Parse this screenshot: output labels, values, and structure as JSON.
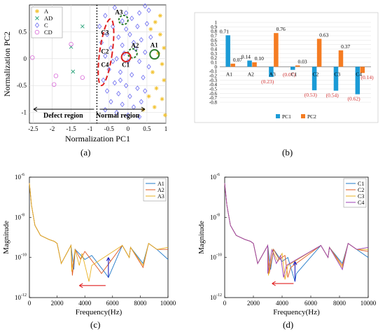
{
  "labels": {
    "a": "(a)",
    "b": "(b)",
    "c": "(c)",
    "d": "(d)"
  },
  "chart_data": [
    {
      "type": "scatter",
      "xlabel": "Normalization  PC1",
      "ylabel": "Normalization  PC2",
      "xlim": [
        -2.6,
        1.0
      ],
      "ylim": [
        -1.2,
        1.0
      ],
      "xticks": [
        -2.5,
        -2,
        -1.5,
        -1,
        -0.5,
        0,
        0.5,
        1
      ],
      "xtick_labels": [
        "-2.5",
        "-2",
        "-1.5",
        "-1",
        "-0.5",
        "0",
        "0.5",
        "1"
      ],
      "yticks": [
        -1,
        -0.5,
        0,
        0.5
      ],
      "ytick_labels": [
        "-1",
        "-0.5",
        "0",
        "0.5"
      ],
      "legend": {
        "placement": "top-left",
        "entries": [
          "A",
          "AD",
          "C",
          "CD"
        ]
      },
      "series_colors": {
        "A": "#f2c230",
        "AD": "#2aa37a",
        "C": "#6b6bf0",
        "CD": "#d96bd9"
      },
      "regions": {
        "defect": "Defect region",
        "normal": "Normal region",
        "boundary_x": -0.82
      },
      "series": [
        {
          "name": "A",
          "points": [
            [
              0.72,
              0.68
            ],
            [
              0.6,
              0.55
            ],
            [
              0.85,
              0.45
            ],
            [
              0.95,
              0.2
            ],
            [
              0.8,
              0.1
            ],
            [
              0.9,
              -0.1
            ],
            [
              0.65,
              -0.25
            ],
            [
              0.95,
              -0.4
            ],
            [
              0.75,
              -0.55
            ],
            [
              0.55,
              -0.7
            ],
            [
              0.9,
              -0.75
            ],
            [
              0.7,
              -0.9
            ],
            [
              0.98,
              -1.05
            ],
            [
              0.4,
              -0.95
            ],
            [
              0.85,
              0.8
            ]
          ]
        },
        {
          "name": "AD",
          "points": [
            [
              -1.2,
              0.6
            ],
            [
              -1.5,
              0.22
            ],
            [
              -1.45,
              -0.24
            ]
          ]
        },
        {
          "name": "C",
          "points": [
            [
              -0.35,
              0.95
            ],
            [
              0.45,
              0.98
            ],
            [
              0.55,
              0.9
            ],
            [
              -0.6,
              0.8
            ],
            [
              -0.15,
              0.7
            ],
            [
              0.1,
              0.75
            ],
            [
              0.3,
              0.85
            ],
            [
              -0.4,
              0.6
            ],
            [
              -0.05,
              0.55
            ],
            [
              0.25,
              0.6
            ],
            [
              0.5,
              0.65
            ],
            [
              -0.55,
              0.45
            ],
            [
              -0.25,
              0.4
            ],
            [
              0.05,
              0.45
            ],
            [
              0.35,
              0.35
            ],
            [
              -0.7,
              0.3
            ],
            [
              -0.45,
              0.2
            ],
            [
              -0.15,
              0.25
            ],
            [
              0.2,
              0.18
            ],
            [
              0.45,
              0.12
            ],
            [
              -0.6,
              0.05
            ],
            [
              -0.3,
              0.0
            ],
            [
              0.0,
              -0.05
            ],
            [
              0.3,
              -0.05
            ],
            [
              0.55,
              -0.15
            ],
            [
              -0.5,
              -0.2
            ],
            [
              -0.2,
              -0.25
            ],
            [
              0.1,
              -0.3
            ],
            [
              0.4,
              -0.35
            ],
            [
              -0.65,
              -0.4
            ],
            [
              -0.35,
              -0.45
            ],
            [
              -0.05,
              -0.5
            ],
            [
              0.25,
              -0.55
            ],
            [
              -0.55,
              -0.6
            ],
            [
              -0.25,
              -0.65
            ],
            [
              0.05,
              -0.7
            ],
            [
              0.35,
              -0.8
            ],
            [
              -0.45,
              -0.8
            ],
            [
              -0.15,
              -0.85
            ],
            [
              0.15,
              -0.9
            ],
            [
              -0.3,
              -1.0
            ],
            [
              0.0,
              -1.05
            ],
            [
              -0.6,
              -0.95
            ],
            [
              0.3,
              -1.08
            ],
            [
              -0.1,
              0.1
            ],
            [
              0.15,
              0.3
            ],
            [
              -0.4,
              -0.05
            ],
            [
              0.6,
              0.4
            ],
            [
              -0.2,
              -0.4
            ],
            [
              0.45,
              -0.6
            ],
            [
              -0.75,
              0.6
            ],
            [
              -0.05,
              0.85
            ]
          ]
        },
        {
          "name": "CD",
          "points": [
            [
              -2.52,
              0.02
            ],
            [
              -1.9,
              -0.32
            ],
            [
              -1.95,
              -0.48
            ],
            [
              -1.5,
              0.27
            ],
            [
              -1.2,
              -0.35
            ]
          ]
        }
      ],
      "annotations": [
        {
          "text": "A1",
          "x": 0.7,
          "y": 0.08,
          "ring": "#2d7d2d"
        },
        {
          "text": "A2",
          "x": 0.12,
          "y": 0.1,
          "ring": "#2d7d2d"
        },
        {
          "text": "A3",
          "x": -0.12,
          "y": 0.72,
          "ring": "#2d7d2d"
        },
        {
          "text": "C1",
          "x": -0.05,
          "y": 0.03,
          "ring": "#d42020"
        },
        {
          "text": "C2",
          "x": -0.6,
          "y": 0.15,
          "ring": null
        },
        {
          "text": "C3",
          "x": -0.6,
          "y": 0.5,
          "ring": null
        },
        {
          "text": "C4",
          "x": -0.6,
          "y": -0.1,
          "ring": null
        }
      ]
    },
    {
      "type": "bar",
      "categories": [
        "A1",
        "A2",
        "A3",
        "C1",
        "C2",
        "C3",
        "C4"
      ],
      "series": [
        {
          "name": "PC1",
          "values": [
            0.71,
            0.14,
            -0.23,
            -0.07,
            -0.53,
            -0.54,
            -0.62
          ],
          "color": "#1b9bd6"
        },
        {
          "name": "PC2",
          "values": [
            0.07,
            0.1,
            0.76,
            0.03,
            0.63,
            0.37,
            -0.14
          ],
          "color": "#f57c22"
        }
      ],
      "value_labels": [
        [
          "0.71",
          "0.07"
        ],
        [
          "0.14",
          "0.10"
        ],
        [
          "(0.23)",
          "0.76"
        ],
        [
          "(0.07)",
          "0.03"
        ],
        [
          "(0.53)",
          "0.63"
        ],
        [
          "(0.54)",
          "0.37"
        ],
        [
          "(0.62)",
          "(0.14)"
        ]
      ],
      "ylim": [
        -0.8,
        1.0
      ],
      "yticks": [
        1,
        0.9,
        0.8,
        0.7,
        0.6,
        0.5,
        0.4,
        0.3,
        0.2,
        0.1,
        0,
        -0.1,
        -0.2,
        -0.3,
        -0.4,
        -0.5,
        -0.6,
        -0.7,
        -0.8
      ],
      "ytick_labels": [
        "1",
        "0.9",
        "0.8",
        "0.7",
        "0.6",
        "0.5",
        "0.4",
        "0.3",
        "0.2",
        "0.1",
        "0",
        "-0.1",
        "-0.2",
        "-0.3",
        "-0.4",
        "-0.5",
        "-0.6",
        "-0.7",
        "-0.8"
      ],
      "legend": {
        "placement": "bottom",
        "entries": [
          "PC1",
          "PC2"
        ]
      }
    },
    {
      "type": "line",
      "xlabel": "Frequency(Hz)",
      "ylabel": "Magnitude",
      "xlim": [
        0,
        10000
      ],
      "ylim_log10": [
        -12,
        -6
      ],
      "xticks": [
        0,
        2000,
        4000,
        6000,
        8000,
        10000
      ],
      "xtick_labels": [
        "0",
        "2000",
        "4000",
        "6000",
        "8000",
        "10000"
      ],
      "ytick_labels": [
        "10",
        "10",
        "10",
        "10"
      ],
      "ytick_exponents": [
        "-6",
        "-8",
        "-10",
        "-12"
      ],
      "legend": {
        "placement": "top-right",
        "entries": [
          "A1",
          "A2",
          "A3"
        ]
      },
      "series": [
        {
          "name": "A1",
          "color": "#1f78c8",
          "peaks": [
            [
              2000,
              -9.3
            ],
            [
              3000,
              -9.4
            ],
            [
              3300,
              -9.6
            ],
            [
              4500,
              -9.9
            ],
            [
              5500,
              -10.8
            ],
            [
              6700,
              -9.4
            ],
            [
              7300,
              -9.5
            ],
            [
              8600,
              -9.3
            ]
          ],
          "dips": [
            [
              2300,
              -10.3
            ],
            [
              3200,
              -10.6
            ],
            [
              4000,
              -10.1
            ],
            [
              5700,
              -11.0
            ],
            [
              7200,
              -10.0
            ],
            [
              8200,
              -10.3
            ]
          ],
          "end": -10.1
        },
        {
          "name": "A2",
          "color": "#e05a20",
          "peaks": [
            [
              2000,
              -9.3
            ],
            [
              3000,
              -9.4
            ],
            [
              3300,
              -9.6
            ],
            [
              4000,
              -9.7
            ],
            [
              5000,
              -10.6
            ],
            [
              6700,
              -9.4
            ],
            [
              7300,
              -9.5
            ],
            [
              8600,
              -9.3
            ]
          ],
          "dips": [
            [
              2300,
              -10.3
            ],
            [
              3100,
              -10.9
            ],
            [
              3700,
              -10.1
            ],
            [
              5200,
              -10.8
            ],
            [
              7200,
              -10.0
            ],
            [
              8200,
              -10.5
            ]
          ],
          "end": -9.6
        },
        {
          "name": "A3",
          "color": "#e8b020",
          "peaks": [
            [
              2000,
              -9.3
            ],
            [
              3000,
              -9.4
            ],
            [
              3300,
              -9.6
            ],
            [
              3800,
              -9.8
            ],
            [
              4500,
              -10.4
            ],
            [
              6700,
              -9.4
            ],
            [
              7300,
              -9.5
            ],
            [
              8600,
              -9.3
            ]
          ],
          "dips": [
            [
              2300,
              -10.3
            ],
            [
              3050,
              -10.7
            ],
            [
              3600,
              -10.4
            ],
            [
              4300,
              -11.2
            ],
            [
              7200,
              -10.0
            ],
            [
              8200,
              -10.4
            ]
          ],
          "end": -9.5
        }
      ],
      "arrow_left": {
        "from": 5500,
        "to": 3600,
        "level": -11.4
      },
      "arrow_up": {
        "x": 5700,
        "from": -11.0,
        "to": -10.0
      }
    },
    {
      "type": "line",
      "xlabel": "Frequency(Hz)",
      "ylabel": "Magnitude",
      "xlim": [
        0,
        10000
      ],
      "ylim_log10": [
        -12,
        -6
      ],
      "xticks": [
        0,
        2000,
        4000,
        6000,
        8000,
        10000
      ],
      "xtick_labels": [
        "0",
        "2000",
        "4000",
        "6000",
        "8000",
        "10000"
      ],
      "ytick_labels": [
        "10",
        "10",
        "10",
        "10"
      ],
      "ytick_exponents": [
        "-6",
        "-8",
        "-10",
        "-12"
      ],
      "legend": {
        "placement": "top-right",
        "entries": [
          "C1",
          "C2",
          "C3",
          "C4"
        ]
      },
      "series": [
        {
          "name": "C1",
          "color": "#1f78c8",
          "peaks": [
            [
              2000,
              -9.3
            ],
            [
              3000,
              -9.4
            ],
            [
              3400,
              -9.6
            ],
            [
              4400,
              -10.0
            ],
            [
              5000,
              -10.8
            ],
            [
              6700,
              -9.4
            ],
            [
              7300,
              -9.5
            ],
            [
              8600,
              -9.3
            ]
          ],
          "dips": [
            [
              2300,
              -10.3
            ],
            [
              3200,
              -10.6
            ],
            [
              4000,
              -10.2
            ],
            [
              4900,
              -11.2
            ],
            [
              7200,
              -10.0
            ],
            [
              8200,
              -10.3
            ]
          ],
          "end": -10.0
        },
        {
          "name": "C2",
          "color": "#e05a20",
          "peaks": [
            [
              2000,
              -9.3
            ],
            [
              3000,
              -9.4
            ],
            [
              3400,
              -9.6
            ],
            [
              4200,
              -9.9
            ],
            [
              4600,
              -10.5
            ],
            [
              6700,
              -9.4
            ],
            [
              7300,
              -9.5
            ],
            [
              8600,
              -9.3
            ]
          ],
          "dips": [
            [
              2300,
              -10.3
            ],
            [
              3100,
              -10.8
            ],
            [
              3800,
              -10.1
            ],
            [
              4400,
              -11.0
            ],
            [
              7200,
              -10.0
            ],
            [
              8200,
              -10.4
            ]
          ],
          "end": -9.7
        },
        {
          "name": "C3",
          "color": "#e8b020",
          "peaks": [
            [
              2000,
              -9.3
            ],
            [
              3000,
              -9.4
            ],
            [
              3300,
              -9.6
            ],
            [
              4000,
              -9.8
            ],
            [
              4400,
              -10.4
            ],
            [
              6700,
              -9.4
            ],
            [
              7300,
              -9.5
            ],
            [
              8600,
              -9.3
            ]
          ],
          "dips": [
            [
              2300,
              -10.3
            ],
            [
              3050,
              -10.9
            ],
            [
              3700,
              -10.2
            ],
            [
              4200,
              -11.1
            ],
            [
              7200,
              -10.0
            ],
            [
              8200,
              -10.5
            ]
          ],
          "end": -9.6
        },
        {
          "name": "C4",
          "color": "#9b3fb5",
          "peaks": [
            [
              2000,
              -9.3
            ],
            [
              3000,
              -9.4
            ],
            [
              3300,
              -9.6
            ],
            [
              3900,
              -9.9
            ],
            [
              4300,
              -10.4
            ],
            [
              6700,
              -9.4
            ],
            [
              7300,
              -9.5
            ],
            [
              8600,
              -9.3
            ]
          ],
          "dips": [
            [
              2300,
              -10.3
            ],
            [
              3000,
              -10.8
            ],
            [
              3600,
              -10.3
            ],
            [
              4100,
              -11.0
            ],
            [
              7200,
              -10.0
            ],
            [
              8200,
              -10.6
            ]
          ],
          "end": -9.5
        }
      ],
      "arrow_left": {
        "from": 4800,
        "to": 3300,
        "level": -11.3
      },
      "arrow_up": {
        "x": 4900,
        "from": -11.2,
        "to": -10.2
      }
    }
  ]
}
